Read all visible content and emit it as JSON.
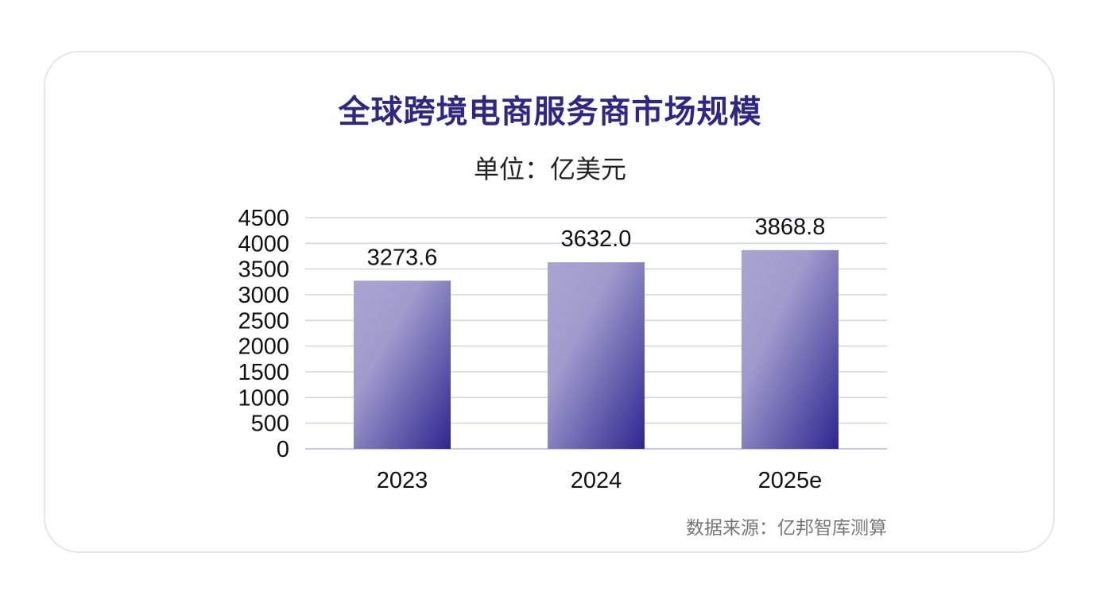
{
  "header": {
    "title": "全球跨境电商服务商市场规模",
    "unit": "单位：亿美元"
  },
  "footer": {
    "source": "数据来源：亿邦智库测算"
  },
  "colors": {
    "title": "#2e2788",
    "bar_light": "#a7a3d1",
    "bar_dark": "#2e2690",
    "grid": "#d4d3e6"
  },
  "chart_data": {
    "type": "bar",
    "title": "全球跨境电商服务商市场规模",
    "subtitle": "单位：亿美元",
    "categories": [
      "2023",
      "2024",
      "2025e"
    ],
    "values": [
      3273.6,
      3632.0,
      3868.8
    ],
    "data_labels": [
      "3273.6",
      "3632.0",
      "3868.8"
    ],
    "y_ticks": [
      0,
      500,
      1000,
      1500,
      2000,
      2500,
      3000,
      3500,
      4000,
      4500
    ],
    "ylim": [
      0,
      4500
    ],
    "grid": true,
    "legend": "none"
  }
}
